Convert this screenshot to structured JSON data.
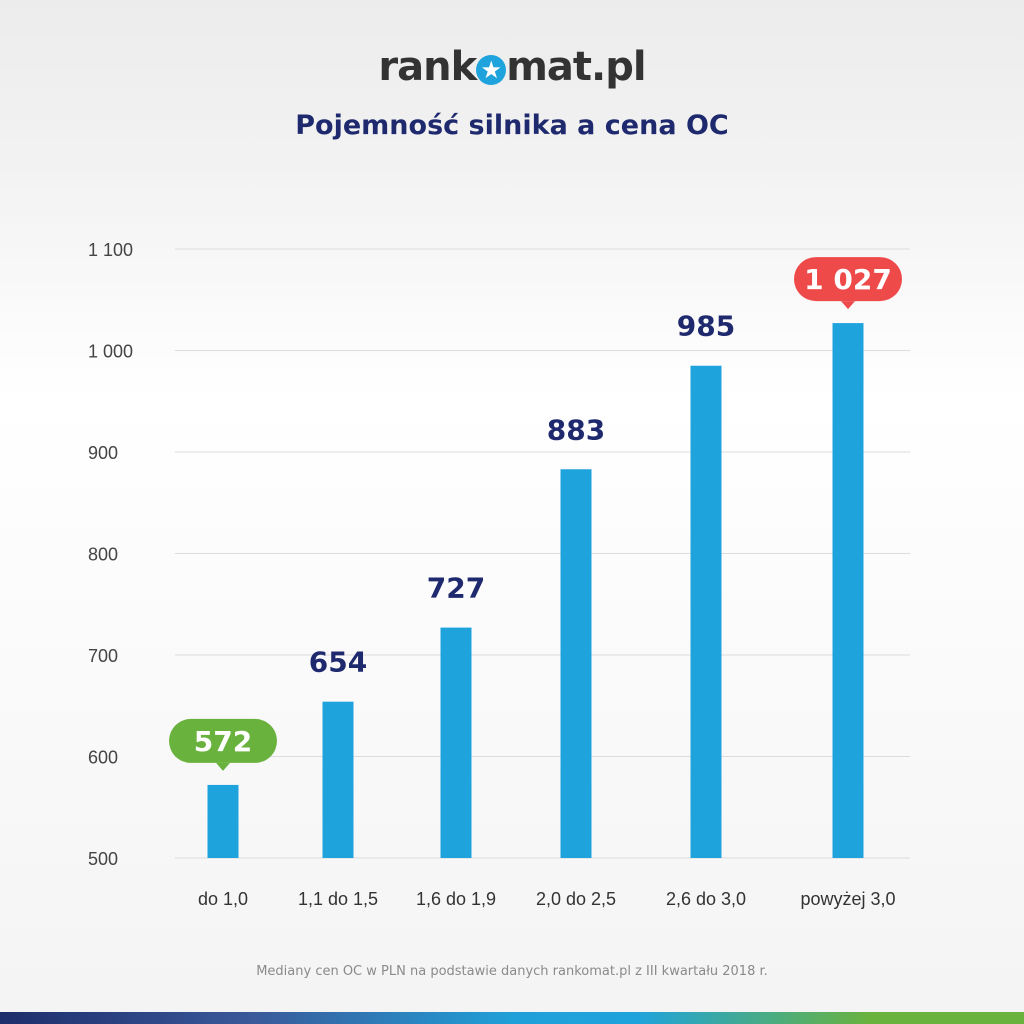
{
  "logo": {
    "text_before": "rank",
    "text_after": "mat.pl"
  },
  "chart_data": {
    "type": "bar",
    "title": "Pojemność silnika a cena OC",
    "categories": [
      "do 1,0",
      "1,1 do 1,5",
      "1,6 do 1,9",
      "2,0 do 2,5",
      "2,6 do 3,0",
      "powyżej 3,0"
    ],
    "values": [
      572,
      654,
      727,
      883,
      985,
      1027
    ],
    "value_labels": [
      "572",
      "654",
      "727",
      "883",
      "985",
      "1 027"
    ],
    "yticks": [
      500,
      600,
      700,
      800,
      900,
      1000,
      1100
    ],
    "ytick_labels": [
      "500",
      "600",
      "700",
      "800",
      "900",
      "1 000",
      "1 100"
    ],
    "ylim": [
      500,
      1100
    ],
    "xlabel": "",
    "ylabel": "",
    "grid": true,
    "highlight": {
      "min_index": 0,
      "max_index": 5
    },
    "colors": {
      "bar": "#1fa3dd",
      "label": "#1f2a6e",
      "min": "#6ab23e",
      "max": "#ef4a4a",
      "grid": "#dcdcdc"
    }
  },
  "footnote": "Mediany cen OC w PLN na podstawie danych rankomat.pl z III kwartału 2018 r."
}
